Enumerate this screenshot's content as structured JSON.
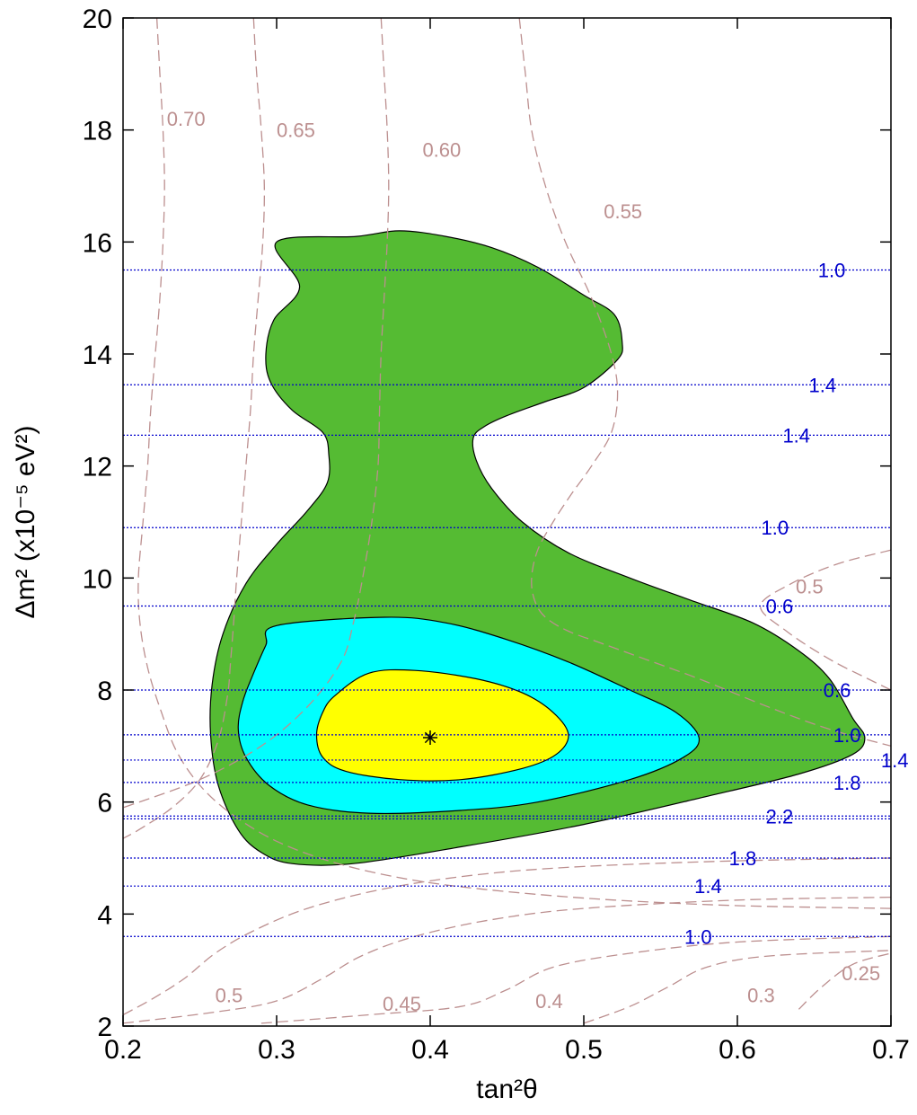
{
  "chart_data": {
    "type": "contour",
    "xlabel": "tan²θ",
    "ylabel": "Δm² (x10⁻⁵ eV²)",
    "xlim": [
      0.2,
      0.7
    ],
    "ylim": [
      2,
      20
    ],
    "xticks": [
      "0.2",
      "0.3",
      "0.4",
      "0.5",
      "0.6",
      "0.7"
    ],
    "yticks": [
      "2",
      "4",
      "6",
      "8",
      "10",
      "12",
      "14",
      "16",
      "18",
      "20"
    ],
    "best_fit": {
      "x": 0.4,
      "y": 7.15,
      "marker": "*"
    },
    "colors": {
      "outer_region": "#55bb33",
      "middle_region": "#00ffff",
      "inner_region": "#ffff00",
      "iso_ratio_lines": "#bc8f8f",
      "day_night_lines": "#0000cc"
    },
    "regions": [
      {
        "level": "outer",
        "points": [
          [
            0.3,
            16.0
          ],
          [
            0.352,
            16.1
          ],
          [
            0.38,
            16.2
          ],
          [
            0.41,
            16.1
          ],
          [
            0.44,
            15.9
          ],
          [
            0.47,
            15.55
          ],
          [
            0.5,
            15.05
          ],
          [
            0.52,
            14.7
          ],
          [
            0.525,
            14.2
          ],
          [
            0.522,
            13.9
          ],
          [
            0.5,
            13.4
          ],
          [
            0.475,
            13.15
          ],
          [
            0.45,
            12.9
          ],
          [
            0.435,
            12.7
          ],
          [
            0.428,
            12.5
          ],
          [
            0.43,
            12.1
          ],
          [
            0.44,
            11.6
          ],
          [
            0.46,
            11.0
          ],
          [
            0.49,
            10.45
          ],
          [
            0.53,
            10.0
          ],
          [
            0.57,
            9.6
          ],
          [
            0.61,
            9.2
          ],
          [
            0.64,
            8.7
          ],
          [
            0.66,
            8.2
          ],
          [
            0.675,
            7.5
          ],
          [
            0.683,
            7.15
          ],
          [
            0.675,
            6.85
          ],
          [
            0.64,
            6.5
          ],
          [
            0.58,
            6.1
          ],
          [
            0.5,
            5.6
          ],
          [
            0.42,
            5.2
          ],
          [
            0.35,
            4.9
          ],
          [
            0.31,
            4.9
          ],
          [
            0.29,
            5.1
          ],
          [
            0.275,
            5.5
          ],
          [
            0.262,
            6.3
          ],
          [
            0.257,
            7.2
          ],
          [
            0.258,
            8.1
          ],
          [
            0.265,
            9.0
          ],
          [
            0.28,
            9.9
          ],
          [
            0.3,
            10.6
          ],
          [
            0.32,
            11.2
          ],
          [
            0.333,
            11.7
          ],
          [
            0.334,
            12.2
          ],
          [
            0.33,
            12.6
          ],
          [
            0.31,
            13.0
          ],
          [
            0.296,
            13.5
          ],
          [
            0.293,
            14.0
          ],
          [
            0.298,
            14.6
          ],
          [
            0.315,
            15.2
          ]
        ]
      },
      {
        "level": "middle",
        "points": [
          [
            0.3,
            9.15
          ],
          [
            0.37,
            9.3
          ],
          [
            0.41,
            9.2
          ],
          [
            0.45,
            8.9
          ],
          [
            0.49,
            8.5
          ],
          [
            0.53,
            8.0
          ],
          [
            0.56,
            7.6
          ],
          [
            0.575,
            7.15
          ],
          [
            0.565,
            6.8
          ],
          [
            0.53,
            6.4
          ],
          [
            0.47,
            6.0
          ],
          [
            0.42,
            5.85
          ],
          [
            0.36,
            5.8
          ],
          [
            0.32,
            5.95
          ],
          [
            0.295,
            6.3
          ],
          [
            0.28,
            6.8
          ],
          [
            0.275,
            7.3
          ],
          [
            0.278,
            7.8
          ],
          [
            0.285,
            8.3
          ],
          [
            0.293,
            8.8
          ]
        ]
      },
      {
        "level": "inner",
        "points": [
          [
            0.36,
            8.3
          ],
          [
            0.39,
            8.35
          ],
          [
            0.43,
            8.2
          ],
          [
            0.46,
            7.95
          ],
          [
            0.48,
            7.6
          ],
          [
            0.49,
            7.2
          ],
          [
            0.482,
            6.85
          ],
          [
            0.46,
            6.6
          ],
          [
            0.42,
            6.4
          ],
          [
            0.38,
            6.4
          ],
          [
            0.345,
            6.55
          ],
          [
            0.33,
            6.8
          ],
          [
            0.326,
            7.2
          ],
          [
            0.33,
            7.6
          ],
          [
            0.338,
            7.9
          ]
        ]
      }
    ],
    "iso_ratio_lines": [
      {
        "label": "0.70",
        "label_at": [
          0.2285,
          18.2
        ],
        "points": [
          [
            0.222,
            20
          ],
          [
            0.224,
            19
          ],
          [
            0.226,
            18
          ],
          [
            0.227,
            17
          ],
          [
            0.226,
            16
          ],
          [
            0.224,
            15
          ],
          [
            0.221,
            14
          ],
          [
            0.218,
            13
          ],
          [
            0.216,
            12
          ],
          [
            0.213,
            11
          ],
          [
            0.21,
            10
          ],
          [
            0.211,
            9.2
          ],
          [
            0.216,
            8.4
          ],
          [
            0.225,
            7.6
          ],
          [
            0.235,
            6.9
          ],
          [
            0.25,
            6.3
          ],
          [
            0.27,
            5.8
          ],
          [
            0.3,
            5.3
          ],
          [
            0.34,
            4.9
          ],
          [
            0.39,
            4.6
          ],
          [
            0.45,
            4.4
          ],
          [
            0.52,
            4.25
          ],
          [
            0.6,
            4.15
          ],
          [
            0.7,
            4.1
          ]
        ]
      },
      {
        "label": "0.65",
        "label_at": [
          0.3,
          18.0
        ],
        "points": [
          [
            0.285,
            20
          ],
          [
            0.287,
            19
          ],
          [
            0.29,
            18
          ],
          [
            0.292,
            17
          ],
          [
            0.291,
            16
          ],
          [
            0.288,
            15
          ],
          [
            0.285,
            14
          ],
          [
            0.283,
            13
          ],
          [
            0.28,
            12
          ],
          [
            0.277,
            11
          ],
          [
            0.274,
            10
          ],
          [
            0.272,
            9.2
          ],
          [
            0.27,
            8.5
          ],
          [
            0.268,
            7.9
          ],
          [
            0.262,
            7.1
          ],
          [
            0.25,
            6.4
          ],
          [
            0.232,
            5.9
          ],
          [
            0.21,
            5.5
          ],
          [
            0.2,
            5.35
          ]
        ]
      },
      {
        "label": "0.60",
        "label_at": [
          0.395,
          17.65
        ],
        "points": [
          [
            0.368,
            20
          ],
          [
            0.37,
            19
          ],
          [
            0.372,
            18
          ],
          [
            0.373,
            17
          ],
          [
            0.372,
            16
          ],
          [
            0.37,
            15
          ],
          [
            0.368,
            14
          ],
          [
            0.367,
            13
          ],
          [
            0.366,
            12
          ],
          [
            0.362,
            11
          ],
          [
            0.356,
            10
          ],
          [
            0.35,
            9.2
          ],
          [
            0.342,
            8.5
          ],
          [
            0.32,
            7.7
          ],
          [
            0.29,
            7.0
          ],
          [
            0.25,
            6.4
          ],
          [
            0.2,
            5.9
          ]
        ]
      },
      {
        "label": "0.55",
        "label_at": [
          0.513,
          16.55
        ],
        "points": [
          [
            0.458,
            20
          ],
          [
            0.462,
            19
          ],
          [
            0.466,
            18
          ],
          [
            0.475,
            17
          ],
          [
            0.488,
            16
          ],
          [
            0.505,
            15
          ],
          [
            0.518,
            14
          ],
          [
            0.522,
            13.3
          ],
          [
            0.518,
            12.6
          ],
          [
            0.505,
            12
          ],
          [
            0.492,
            11.5
          ],
          [
            0.48,
            11
          ],
          [
            0.47,
            10.5
          ],
          [
            0.466,
            10
          ],
          [
            0.468,
            9.6
          ],
          [
            0.475,
            9.3
          ],
          [
            0.49,
            9.05
          ],
          [
            0.51,
            8.85
          ],
          [
            0.535,
            8.6
          ],
          [
            0.575,
            8.2
          ],
          [
            0.62,
            7.7
          ],
          [
            0.66,
            7.3
          ],
          [
            0.7,
            7.0
          ]
        ]
      },
      {
        "label": "0.5",
        "label_at": [
          0.638,
          9.85
        ],
        "points": [
          [
            0.7,
            10.5
          ],
          [
            0.665,
            10.25
          ],
          [
            0.635,
            9.9
          ],
          [
            0.615,
            9.5
          ],
          [
            0.632,
            9.05
          ],
          [
            0.66,
            8.55
          ],
          [
            0.685,
            8.2
          ],
          [
            0.7,
            8.0
          ]
        ]
      },
      {
        "label": "0.5",
        "label_at": [
          0.26,
          2.55
        ],
        "points": [
          [
            0.2,
            2.2
          ],
          [
            0.22,
            2.5
          ],
          [
            0.24,
            2.85
          ],
          [
            0.26,
            3.3
          ],
          [
            0.285,
            3.7
          ],
          [
            0.32,
            4.1
          ],
          [
            0.37,
            4.45
          ],
          [
            0.43,
            4.7
          ],
          [
            0.5,
            4.85
          ],
          [
            0.6,
            4.95
          ],
          [
            0.7,
            5.0
          ]
        ]
      },
      {
        "label": "0.45",
        "label_at": [
          0.369,
          2.4
        ],
        "points": [
          [
            0.2,
            2.05
          ],
          [
            0.26,
            2.25
          ],
          [
            0.3,
            2.45
          ],
          [
            0.33,
            2.85
          ],
          [
            0.355,
            3.25
          ],
          [
            0.39,
            3.6
          ],
          [
            0.44,
            3.9
          ],
          [
            0.5,
            4.1
          ],
          [
            0.6,
            4.25
          ],
          [
            0.7,
            4.3
          ]
        ]
      },
      {
        "label": "0.4",
        "label_at": [
          0.4685,
          2.45
        ],
        "points": [
          [
            0.29,
            2.05
          ],
          [
            0.36,
            2.2
          ],
          [
            0.42,
            2.35
          ],
          [
            0.45,
            2.65
          ],
          [
            0.48,
            3.05
          ],
          [
            0.53,
            3.3
          ],
          [
            0.6,
            3.5
          ],
          [
            0.7,
            3.6
          ]
        ]
      },
      {
        "label": "0.3",
        "label_at": [
          0.6065,
          2.55
        ],
        "points": [
          [
            0.5,
            2.05
          ],
          [
            0.53,
            2.35
          ],
          [
            0.555,
            2.7
          ],
          [
            0.58,
            3.05
          ],
          [
            0.62,
            3.25
          ],
          [
            0.7,
            3.35
          ]
        ]
      },
      {
        "label": "0.25",
        "label_at": [
          0.668,
          2.95
        ],
        "points": [
          [
            0.64,
            2.3
          ],
          [
            0.655,
            2.7
          ],
          [
            0.675,
            3.1
          ],
          [
            0.7,
            3.3
          ]
        ]
      }
    ],
    "day_night_lines": [
      {
        "y": 15.5,
        "label": "1.0",
        "label_x": 0.6525
      },
      {
        "y": 13.45,
        "label": "1.4",
        "label_x": 0.6465
      },
      {
        "y": 12.55,
        "label": "1.4",
        "label_x": 0.6295
      },
      {
        "y": 10.9,
        "label": "1.0",
        "label_x": 0.6155
      },
      {
        "y": 9.5,
        "label": "0.6",
        "label_x": 0.6185
      },
      {
        "y": 8.0,
        "label": "0.6",
        "label_x": 0.656
      },
      {
        "y": 7.2,
        "label": "1.0",
        "label_x": 0.6625
      },
      {
        "y": 6.75,
        "label": "1.4",
        "label_x": 0.6935
      },
      {
        "y": 6.35,
        "label": "1.8",
        "label_x": 0.6625
      },
      {
        "y": 5.75,
        "label": "2.2",
        "label_x": 0.6185
      },
      {
        "y": 5.7,
        "label": "",
        "label_x": 0
      },
      {
        "y": 5.0,
        "label": "1.8",
        "label_x": 0.5945
      },
      {
        "y": 4.5,
        "label": "1.4",
        "label_x": 0.572
      },
      {
        "y": 3.6,
        "label": "1.0",
        "label_x": 0.5655
      }
    ]
  }
}
